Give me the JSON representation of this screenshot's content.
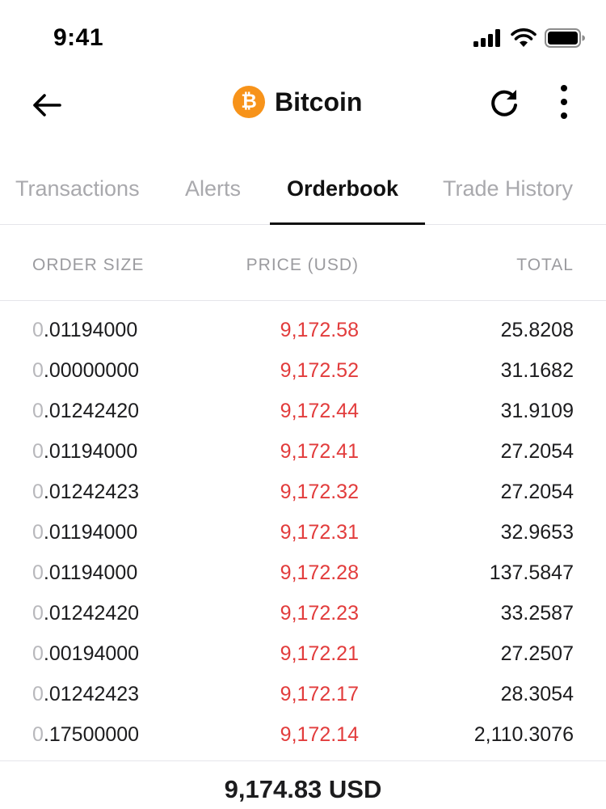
{
  "status_bar": {
    "time": "9:41"
  },
  "nav": {
    "title": "Bitcoin",
    "logo_glyph": "₿",
    "accent_color": "#f7931a"
  },
  "tabs": [
    {
      "label": "Transactions",
      "active": false
    },
    {
      "label": "Alerts",
      "active": false
    },
    {
      "label": "Orderbook",
      "active": true
    },
    {
      "label": "Trade History",
      "active": false
    }
  ],
  "orderbook": {
    "headers": {
      "order_size": "ORDER SIZE",
      "price": "PRICE (USD)",
      "total": "TOTAL"
    },
    "price_color": "#e23c3c",
    "rows": [
      {
        "size_lead": "0",
        "size_rest": ".01194000",
        "price": "9,172.58",
        "total": "25.8208"
      },
      {
        "size_lead": "0",
        "size_rest": ".00000000",
        "price": "9,172.52",
        "total": "31.1682"
      },
      {
        "size_lead": "0",
        "size_rest": ".01242420",
        "price": "9,172.44",
        "total": "31.9109"
      },
      {
        "size_lead": "0",
        "size_rest": ".01194000",
        "price": "9,172.41",
        "total": "27.2054"
      },
      {
        "size_lead": "0",
        "size_rest": ".01242423",
        "price": "9,172.32",
        "total": "27.2054"
      },
      {
        "size_lead": "0",
        "size_rest": ".01194000",
        "price": "9,172.31",
        "total": "32.9653"
      },
      {
        "size_lead": "0",
        "size_rest": ".01194000",
        "price": "9,172.28",
        "total": "137.5847"
      },
      {
        "size_lead": "0",
        "size_rest": ".01242420",
        "price": "9,172.23",
        "total": "33.2587"
      },
      {
        "size_lead": "0",
        "size_rest": ".00194000",
        "price": "9,172.21",
        "total": "27.2507"
      },
      {
        "size_lead": "0",
        "size_rest": ".01242423",
        "price": "9,172.17",
        "total": "28.3054"
      },
      {
        "size_lead": "0",
        "size_rest": ".17500000",
        "price": "9,172.14",
        "total": "2,110.3076"
      }
    ]
  },
  "footer": {
    "current_price": "9,174.83 USD"
  },
  "icons": {
    "back": "back-arrow-icon",
    "refresh": "refresh-icon",
    "more": "more-vertical-icon",
    "signal": "cellular-signal-icon",
    "wifi": "wifi-icon",
    "battery": "battery-icon"
  }
}
